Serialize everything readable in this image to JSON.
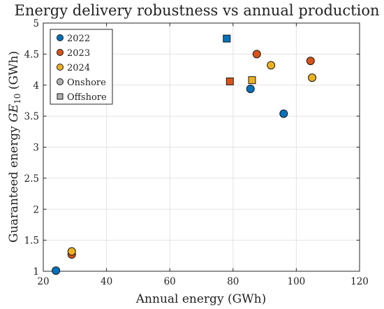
{
  "chart_data": {
    "type": "scatter",
    "title": "Energy delivery robustness vs annual production",
    "xlabel": "Annual energy (GWh)",
    "ylabel": {
      "main": "Guaranteed energy ",
      "symbol": "GE",
      "subscript": "10",
      "unit": " (GWh)"
    },
    "xlim": [
      20,
      120
    ],
    "ylim": [
      1,
      5
    ],
    "xticks": [
      20,
      40,
      60,
      80,
      100,
      120
    ],
    "yticks": [
      1,
      1.5,
      2,
      2.5,
      3,
      3.5,
      4,
      4.5,
      5
    ],
    "grid": true,
    "legend_position": "top-left",
    "series": [
      {
        "name": "2022",
        "color": "#0072BD",
        "points": [
          {
            "x": 24,
            "y": 1.01,
            "marker": "circle"
          },
          {
            "x": 85.5,
            "y": 3.94,
            "marker": "circle"
          },
          {
            "x": 96,
            "y": 3.54,
            "marker": "circle"
          },
          {
            "x": 78,
            "y": 4.75,
            "marker": "square"
          }
        ]
      },
      {
        "name": "2023",
        "color": "#D95319",
        "points": [
          {
            "x": 29,
            "y": 1.27,
            "marker": "circle"
          },
          {
            "x": 87.5,
            "y": 4.5,
            "marker": "circle"
          },
          {
            "x": 104.5,
            "y": 4.39,
            "marker": "circle"
          },
          {
            "x": 79,
            "y": 4.06,
            "marker": "square"
          }
        ]
      },
      {
        "name": "2024",
        "color": "#EDB120",
        "points": [
          {
            "x": 29,
            "y": 1.32,
            "marker": "circle"
          },
          {
            "x": 92,
            "y": 4.32,
            "marker": "circle"
          },
          {
            "x": 105,
            "y": 4.12,
            "marker": "circle"
          },
          {
            "x": 86,
            "y": 4.08,
            "marker": "square"
          }
        ]
      }
    ],
    "legend": [
      {
        "label": "2022",
        "color": "#0072BD",
        "marker": "circle"
      },
      {
        "label": "2023",
        "color": "#D95319",
        "marker": "circle"
      },
      {
        "label": "2024",
        "color": "#EDB120",
        "marker": "circle"
      },
      {
        "label": "Onshore",
        "color": "#b0b0b0",
        "marker": "circle"
      },
      {
        "label": "Offshore",
        "color": "#b0b0b0",
        "marker": "square"
      }
    ]
  }
}
